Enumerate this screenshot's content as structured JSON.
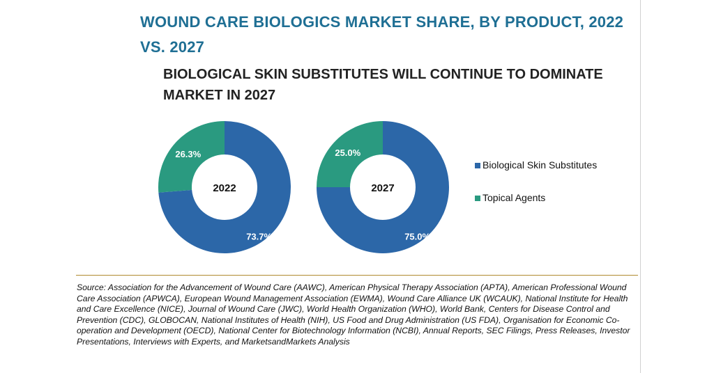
{
  "title": "WOUND CARE BIOLOGICS MARKET SHARE, BY PRODUCT, 2022 VS. 2027",
  "subtitle": "BIOLOGICAL SKIN SUBSTITUTES WILL CONTINUE TO DOMINATE MARKET IN 2027",
  "source": "Source: Association for the Advancement of Wound Care (AAWC), American Physical Therapy Association (APTA), American Professional Wound Care Association (APWCA), European Wound Management Association (EWMA), Wound Care Alliance UK (WCAUK), National Institute for Health and Care Excellence (NICE), Journal of Wound Care (JWC), World Health Organization (WHO), World Bank, Centers for Disease Control and Prevention (CDC), GLOBOCAN, National Institutes of Health (NIH), US Food and Drug Administration (US FDA), Organisation for Economic Co-operation and Development (OECD), National Center for Biotechnology Information (NCBI), Annual Reports, SEC Filings, Press Releases, Investor Presentations, Interviews with Experts, and MarketsandMarkets Analysis",
  "colors": {
    "biological": "#2c67a8",
    "topical": "#2a9a80",
    "title": "#1f6f94"
  },
  "chart_data": {
    "type": "pie",
    "variant": "donut",
    "legend_placement": "right",
    "legend": [
      "Biological Skin Substitutes",
      "Topical Agents"
    ],
    "charts": [
      {
        "center_label": "2022",
        "slices": [
          {
            "name": "Biological Skin Substitutes",
            "value": 73.7,
            "label": "73.7%"
          },
          {
            "name": "Topical Agents",
            "value": 26.3,
            "label": "26.3%"
          }
        ]
      },
      {
        "center_label": "2027",
        "slices": [
          {
            "name": "Biological Skin Substitutes",
            "value": 75.0,
            "label": "75.0%"
          },
          {
            "name": "Topical Agents",
            "value": 25.0,
            "label": "25.0%"
          }
        ]
      }
    ]
  }
}
